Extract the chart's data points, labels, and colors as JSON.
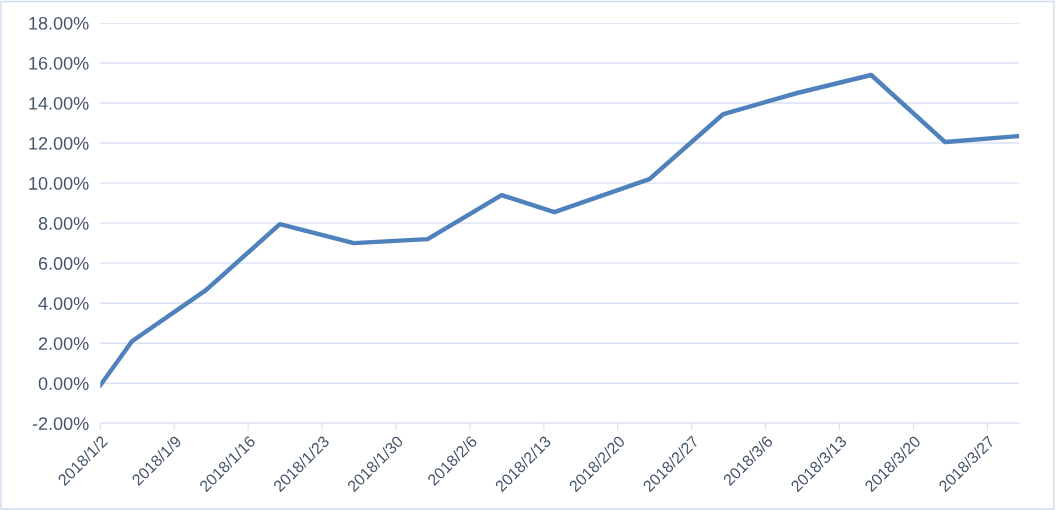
{
  "chart_data": {
    "type": "line",
    "x": [
      "2018-01-02",
      "2018-01-05",
      "2018-01-12",
      "2018-01-19",
      "2018-01-26",
      "2018-02-02",
      "2018-02-09",
      "2018-02-14",
      "2018-02-23",
      "2018-03-02",
      "2018-03-09",
      "2018-03-16",
      "2018-03-23",
      "2018-03-30"
    ],
    "series": [
      {
        "color": "#4f81bd",
        "values": [
          -0.1,
          2.1,
          4.65,
          7.95,
          7.0,
          7.2,
          9.4,
          8.55,
          10.2,
          13.45,
          14.5,
          15.4,
          12.05,
          12.35
        ]
      }
    ],
    "xlim": [
      "2018-01-02",
      "2018-03-30"
    ],
    "xticks": [
      {
        "value": "2018-01-02",
        "label": "2018/1/2"
      },
      {
        "value": "2018-01-09",
        "label": "2018/1/9"
      },
      {
        "value": "2018-01-16",
        "label": "2018/1/16"
      },
      {
        "value": "2018-01-23",
        "label": "2018/1/23"
      },
      {
        "value": "2018-01-30",
        "label": "2018/1/30"
      },
      {
        "value": "2018-02-06",
        "label": "2018/2/6"
      },
      {
        "value": "2018-02-13",
        "label": "2018/2/13"
      },
      {
        "value": "2018-02-20",
        "label": "2018/2/20"
      },
      {
        "value": "2018-02-27",
        "label": "2018/2/27"
      },
      {
        "value": "2018-03-06",
        "label": "2018/3/6"
      },
      {
        "value": "2018-03-13",
        "label": "2018/3/13"
      },
      {
        "value": "2018-03-20",
        "label": "2018/3/20"
      },
      {
        "value": "2018-03-27",
        "label": "2018/3/27"
      }
    ],
    "ylim": [
      -2,
      18
    ],
    "yticks": [
      {
        "value": -2,
        "label": "-2.00%"
      },
      {
        "value": 0,
        "label": "0.00%"
      },
      {
        "value": 2,
        "label": "2.00%"
      },
      {
        "value": 4,
        "label": "4.00%"
      },
      {
        "value": 6,
        "label": "6.00%"
      },
      {
        "value": 8,
        "label": "8.00%"
      },
      {
        "value": 10,
        "label": "10.00%"
      },
      {
        "value": 12,
        "label": "12.00%"
      },
      {
        "value": 14,
        "label": "14.00%"
      },
      {
        "value": 16,
        "label": "16.00%"
      },
      {
        "value": 18,
        "label": "18.00%"
      }
    ],
    "grid": "y",
    "marker": "none",
    "line_style": "solid"
  }
}
